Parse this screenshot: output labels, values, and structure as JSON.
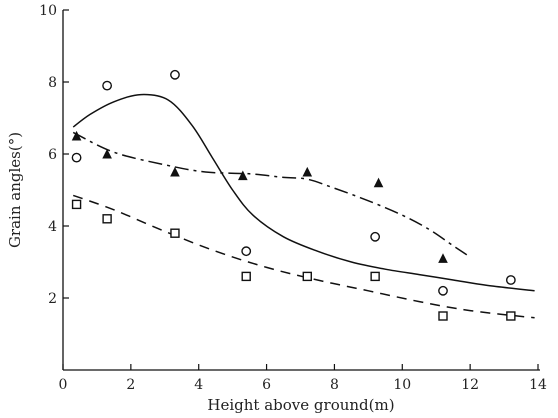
{
  "chart_data": {
    "type": "scatter",
    "xlabel": "Height above ground(m)",
    "ylabel": "Grain angles(°)",
    "xlim": [
      0,
      14
    ],
    "ylim": [
      0,
      10
    ],
    "xticks": [
      0,
      2,
      4,
      6,
      8,
      10,
      12,
      14
    ],
    "yticks": [
      2,
      4,
      6,
      8,
      10
    ],
    "grid": false,
    "series": [
      {
        "marker": "circle",
        "line_style": "solid",
        "points": [
          [
            0.4,
            5.9
          ],
          [
            1.3,
            7.9
          ],
          [
            3.3,
            8.2
          ],
          [
            5.4,
            3.3
          ],
          [
            9.2,
            3.7
          ],
          [
            11.2,
            2.2
          ],
          [
            13.2,
            2.5
          ]
        ],
        "curve": [
          [
            0.3,
            6.75
          ],
          [
            0.8,
            7.1
          ],
          [
            1.5,
            7.45
          ],
          [
            2.3,
            7.65
          ],
          [
            3.1,
            7.5
          ],
          [
            3.8,
            6.8
          ],
          [
            4.4,
            5.9
          ],
          [
            5.0,
            5.0
          ],
          [
            5.6,
            4.3
          ],
          [
            6.5,
            3.7
          ],
          [
            7.5,
            3.3
          ],
          [
            8.5,
            3.0
          ],
          [
            9.5,
            2.8
          ],
          [
            10.5,
            2.65
          ],
          [
            11.5,
            2.5
          ],
          [
            12.5,
            2.35
          ],
          [
            13.9,
            2.2
          ]
        ]
      },
      {
        "marker": "triangle",
        "line_style": "dash-dot",
        "points": [
          [
            0.4,
            6.5
          ],
          [
            1.3,
            6.0
          ],
          [
            3.3,
            5.5
          ],
          [
            5.3,
            5.4
          ],
          [
            7.2,
            5.5
          ],
          [
            9.3,
            5.2
          ],
          [
            11.2,
            3.1
          ]
        ],
        "curve": [
          [
            0.3,
            6.6
          ],
          [
            1.5,
            6.05
          ],
          [
            3.0,
            5.7
          ],
          [
            4.2,
            5.5
          ],
          [
            5.5,
            5.45
          ],
          [
            6.5,
            5.35
          ],
          [
            7.2,
            5.3
          ],
          [
            8.0,
            5.05
          ],
          [
            9.0,
            4.7
          ],
          [
            10.0,
            4.3
          ],
          [
            10.8,
            3.9
          ],
          [
            11.5,
            3.45
          ],
          [
            11.9,
            3.2
          ]
        ]
      },
      {
        "marker": "square",
        "line_style": "dashed",
        "points": [
          [
            0.4,
            4.6
          ],
          [
            1.3,
            4.2
          ],
          [
            3.3,
            3.8
          ],
          [
            5.4,
            2.6
          ],
          [
            7.2,
            2.6
          ],
          [
            9.2,
            2.6
          ],
          [
            11.2,
            1.5
          ],
          [
            13.2,
            1.5
          ]
        ],
        "curve": [
          [
            0.3,
            4.85
          ],
          [
            1.5,
            4.45
          ],
          [
            3.0,
            3.85
          ],
          [
            4.5,
            3.3
          ],
          [
            6.0,
            2.85
          ],
          [
            7.5,
            2.5
          ],
          [
            9.0,
            2.2
          ],
          [
            10.5,
            1.9
          ],
          [
            12.0,
            1.65
          ],
          [
            13.9,
            1.45
          ]
        ]
      }
    ]
  }
}
